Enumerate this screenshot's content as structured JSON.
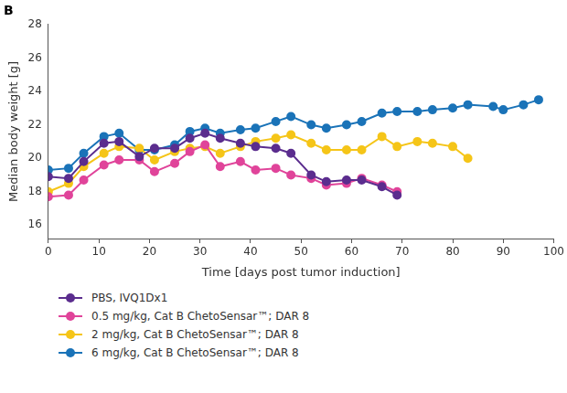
{
  "chart_data": {
    "type": "line",
    "title": "B",
    "x_label": "Time [days post tumor induction]",
    "y_label": "Median body weight [g]",
    "xlim": [
      0,
      100
    ],
    "xticks": [
      0,
      10,
      20,
      30,
      40,
      50,
      60,
      70,
      80,
      90,
      100
    ],
    "ylim": [
      15.2,
      28
    ],
    "yticks": [
      16,
      18,
      20,
      22,
      24,
      26,
      28
    ],
    "grid": false,
    "marker": "circle",
    "line_style": "solid",
    "series": [
      {
        "name": "PBS, IVQ1Dx1",
        "color": "#5b2d8e",
        "x": [
          0,
          4,
          7,
          11,
          14,
          18,
          21,
          25,
          28,
          31,
          34,
          38,
          41,
          45,
          48,
          52,
          55,
          59,
          62,
          66,
          69
        ],
        "values": [
          18.9,
          18.8,
          19.8,
          20.9,
          21.0,
          20.1,
          20.6,
          20.6,
          21.2,
          21.5,
          21.2,
          20.9,
          20.7,
          20.6,
          20.3,
          19.0,
          18.6,
          18.7,
          18.7,
          18.3,
          17.8
        ]
      },
      {
        "name": "0.5 mg/kg, Cat B ChetoSensar™; DAR 8",
        "color": "#e0449a",
        "x": [
          0,
          4,
          7,
          11,
          14,
          18,
          21,
          25,
          28,
          31,
          34,
          38,
          41,
          45,
          48,
          52,
          55,
          59,
          62,
          66,
          69
        ],
        "values": [
          17.7,
          17.8,
          18.7,
          19.6,
          19.9,
          19.9,
          19.2,
          19.7,
          20.4,
          20.8,
          19.5,
          19.8,
          19.3,
          19.4,
          19.0,
          18.8,
          18.4,
          18.5,
          18.8,
          18.4,
          18.0
        ]
      },
      {
        "name": "2 mg/kg, Cat B ChetoSensar™; DAR 8",
        "color": "#f5c518",
        "x": [
          0,
          4,
          7,
          11,
          14,
          18,
          21,
          25,
          28,
          31,
          34,
          38,
          41,
          45,
          48,
          52,
          55,
          59,
          62,
          66,
          69,
          73,
          76,
          80,
          83
        ],
        "values": [
          18.0,
          18.5,
          19.5,
          20.3,
          20.7,
          20.6,
          19.9,
          20.4,
          20.6,
          20.7,
          20.3,
          20.7,
          21.0,
          21.2,
          21.4,
          20.9,
          20.5,
          20.5,
          20.5,
          21.3,
          20.7,
          21.0,
          20.9,
          20.7,
          20.0
        ]
      },
      {
        "name": "6 mg/kg, Cat B ChetoSensar™; DAR 8",
        "color": "#1a73b8",
        "x": [
          0,
          4,
          7,
          11,
          14,
          18,
          21,
          25,
          28,
          31,
          34,
          38,
          41,
          45,
          48,
          52,
          55,
          59,
          62,
          66,
          69,
          73,
          76,
          80,
          83,
          88,
          90,
          94,
          97
        ],
        "values": [
          19.3,
          19.4,
          20.3,
          21.3,
          21.5,
          20.5,
          20.5,
          20.8,
          21.6,
          21.8,
          21.5,
          21.7,
          21.8,
          22.2,
          22.5,
          22.0,
          21.8,
          22.0,
          22.2,
          22.7,
          22.8,
          22.8,
          22.9,
          23.0,
          23.2,
          23.1,
          22.9,
          23.2,
          23.5
        ]
      }
    ]
  }
}
